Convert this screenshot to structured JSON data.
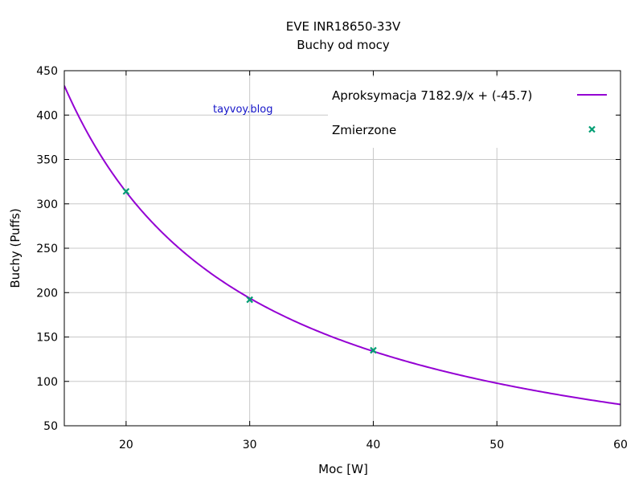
{
  "chart_data": {
    "type": "line",
    "title": "EVE INR18650-33V",
    "subtitle": "Buchy od mocy",
    "xlabel": "Moc [W]",
    "ylabel": "Buchy (Puffs)",
    "xlim": [
      15,
      60
    ],
    "ylim": [
      50,
      450
    ],
    "x_ticks": [
      20,
      30,
      40,
      50,
      60
    ],
    "y_ticks": [
      50,
      100,
      150,
      200,
      250,
      300,
      350,
      400,
      450
    ],
    "grid": true,
    "legend_position": "top-right",
    "annotation": "tayvoy.blog",
    "series": [
      {
        "name": "Aproksymacja",
        "formula": "7182.9/x + (-45.7)",
        "kind": "line",
        "color": "#9400d3",
        "a": 7182.9,
        "b": -45.7
      },
      {
        "name": "Zmierzone",
        "kind": "scatter",
        "marker": "x",
        "color": "#009e73",
        "points": [
          {
            "x": 20,
            "y": 314
          },
          {
            "x": 30,
            "y": 192
          },
          {
            "x": 40,
            "y": 135
          }
        ]
      }
    ]
  }
}
